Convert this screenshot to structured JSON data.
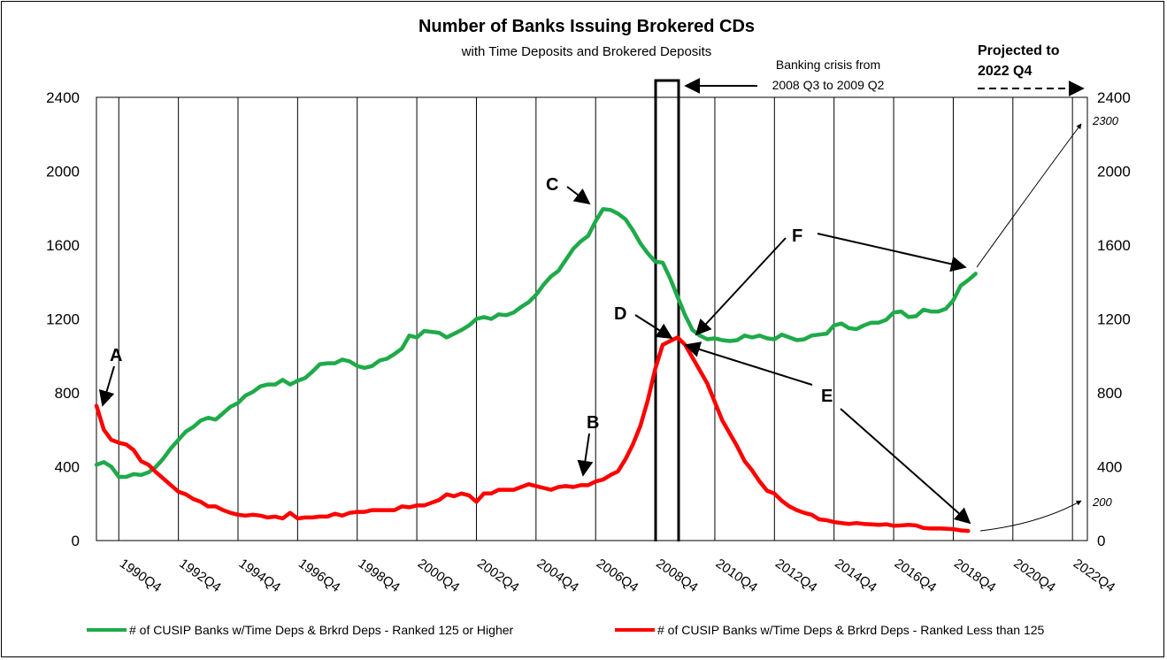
{
  "chart_data": {
    "type": "line",
    "title": "Number of Banks Issuing Brokered CDs",
    "subtitle": "with Time Deposits and Brokered Deposits",
    "x_tick_labels": [
      "1990Q4",
      "1992Q4",
      "1994Q4",
      "1996Q4",
      "1998Q4",
      "2000Q4",
      "2002Q4",
      "2004Q4",
      "2006Q4",
      "2008Q4",
      "2010Q4",
      "2012Q4",
      "2014Q4",
      "2016Q4",
      "2018Q4",
      "2020Q4",
      "2022Q4"
    ],
    "x_range": [
      1990.0,
      2023.25
    ],
    "y_left_ticks": [
      0,
      400,
      800,
      1200,
      1600,
      2000,
      2400
    ],
    "y_right_ticks": [
      0,
      400,
      800,
      1200,
      1600,
      2000,
      2400
    ],
    "ylim": [
      0,
      2400
    ],
    "grid": "vertical lines at each tick year",
    "legend_placement": "bottom",
    "series": [
      {
        "name": "# of CUSIP Banks w/Time Deps & Brkrd Deps - Ranked 125 or Higher",
        "color": "#1faa4a",
        "points": [
          [
            1990.0,
            410
          ],
          [
            1990.25,
            425
          ],
          [
            1990.5,
            400
          ],
          [
            1990.75,
            345
          ],
          [
            1991.0,
            345
          ],
          [
            1991.25,
            360
          ],
          [
            1991.5,
            355
          ],
          [
            1991.75,
            370
          ],
          [
            1992.0,
            400
          ],
          [
            1992.25,
            445
          ],
          [
            1992.5,
            500
          ],
          [
            1992.75,
            545
          ],
          [
            1993.0,
            590
          ],
          [
            1993.25,
            615
          ],
          [
            1993.5,
            650
          ],
          [
            1993.75,
            665
          ],
          [
            1994.0,
            655
          ],
          [
            1994.25,
            690
          ],
          [
            1994.5,
            725
          ],
          [
            1994.75,
            745
          ],
          [
            1995.0,
            785
          ],
          [
            1995.25,
            805
          ],
          [
            1995.5,
            835
          ],
          [
            1995.75,
            845
          ],
          [
            1996.0,
            845
          ],
          [
            1996.25,
            870
          ],
          [
            1996.5,
            845
          ],
          [
            1996.75,
            865
          ],
          [
            1997.0,
            880
          ],
          [
            1997.25,
            915
          ],
          [
            1997.5,
            955
          ],
          [
            1997.75,
            960
          ],
          [
            1998.0,
            960
          ],
          [
            1998.25,
            980
          ],
          [
            1998.5,
            970
          ],
          [
            1998.75,
            945
          ],
          [
            1999.0,
            935
          ],
          [
            1999.25,
            945
          ],
          [
            1999.5,
            975
          ],
          [
            1999.75,
            985
          ],
          [
            2000.0,
            1010
          ],
          [
            2000.25,
            1040
          ],
          [
            2000.5,
            1110
          ],
          [
            2000.75,
            1100
          ],
          [
            2001.0,
            1135
          ],
          [
            2001.25,
            1130
          ],
          [
            2001.5,
            1125
          ],
          [
            2001.75,
            1100
          ],
          [
            2002.0,
            1120
          ],
          [
            2002.25,
            1140
          ],
          [
            2002.5,
            1165
          ],
          [
            2002.75,
            1200
          ],
          [
            2003.0,
            1210
          ],
          [
            2003.25,
            1200
          ],
          [
            2003.5,
            1225
          ],
          [
            2003.75,
            1220
          ],
          [
            2004.0,
            1235
          ],
          [
            2004.25,
            1265
          ],
          [
            2004.5,
            1290
          ],
          [
            2004.75,
            1330
          ],
          [
            2005.0,
            1385
          ],
          [
            2005.25,
            1430
          ],
          [
            2005.5,
            1460
          ],
          [
            2005.75,
            1520
          ],
          [
            2006.0,
            1580
          ],
          [
            2006.25,
            1620
          ],
          [
            2006.5,
            1650
          ],
          [
            2006.75,
            1730
          ],
          [
            2007.0,
            1795
          ],
          [
            2007.25,
            1790
          ],
          [
            2007.5,
            1770
          ],
          [
            2007.75,
            1740
          ],
          [
            2008.0,
            1680
          ],
          [
            2008.25,
            1610
          ],
          [
            2008.5,
            1555
          ],
          [
            2008.75,
            1510
          ],
          [
            2009.0,
            1505
          ],
          [
            2009.25,
            1420
          ],
          [
            2009.5,
            1320
          ],
          [
            2009.75,
            1220
          ],
          [
            2010.0,
            1140
          ],
          [
            2010.25,
            1110
          ],
          [
            2010.5,
            1090
          ],
          [
            2010.75,
            1095
          ],
          [
            2011.0,
            1085
          ],
          [
            2011.25,
            1080
          ],
          [
            2011.5,
            1085
          ],
          [
            2011.75,
            1110
          ],
          [
            2012.0,
            1100
          ],
          [
            2012.25,
            1110
          ],
          [
            2012.5,
            1095
          ],
          [
            2012.75,
            1090
          ],
          [
            2013.0,
            1115
          ],
          [
            2013.25,
            1100
          ],
          [
            2013.5,
            1085
          ],
          [
            2013.75,
            1090
          ],
          [
            2014.0,
            1110
          ],
          [
            2014.25,
            1115
          ],
          [
            2014.5,
            1120
          ],
          [
            2014.75,
            1165
          ],
          [
            2015.0,
            1175
          ],
          [
            2015.25,
            1150
          ],
          [
            2015.5,
            1145
          ],
          [
            2015.75,
            1165
          ],
          [
            2016.0,
            1180
          ],
          [
            2016.25,
            1180
          ],
          [
            2016.5,
            1195
          ],
          [
            2016.75,
            1235
          ],
          [
            2017.0,
            1240
          ],
          [
            2017.25,
            1210
          ],
          [
            2017.5,
            1215
          ],
          [
            2017.75,
            1250
          ],
          [
            2018.0,
            1240
          ],
          [
            2018.25,
            1240
          ],
          [
            2018.5,
            1255
          ],
          [
            2018.75,
            1300
          ],
          [
            2019.0,
            1380
          ],
          [
            2019.25,
            1410
          ],
          [
            2019.5,
            1445
          ]
        ]
      },
      {
        "name": "# of CUSIP Banks w/Time Deps & Brkrd Deps -  Ranked Less than 125",
        "color": "#ff0000",
        "points": [
          [
            1990.0,
            730
          ],
          [
            1990.25,
            600
          ],
          [
            1990.5,
            545
          ],
          [
            1990.75,
            530
          ],
          [
            1991.0,
            520
          ],
          [
            1991.25,
            490
          ],
          [
            1991.5,
            430
          ],
          [
            1991.75,
            410
          ],
          [
            1992.0,
            370
          ],
          [
            1992.25,
            335
          ],
          [
            1992.5,
            300
          ],
          [
            1992.75,
            265
          ],
          [
            1993.0,
            250
          ],
          [
            1993.25,
            225
          ],
          [
            1993.5,
            210
          ],
          [
            1993.75,
            185
          ],
          [
            1994.0,
            185
          ],
          [
            1994.25,
            165
          ],
          [
            1994.5,
            150
          ],
          [
            1994.75,
            140
          ],
          [
            1995.0,
            135
          ],
          [
            1995.25,
            140
          ],
          [
            1995.5,
            135
          ],
          [
            1995.75,
            125
          ],
          [
            1996.0,
            130
          ],
          [
            1996.25,
            120
          ],
          [
            1996.5,
            150
          ],
          [
            1996.75,
            120
          ],
          [
            1997.0,
            125
          ],
          [
            1997.25,
            125
          ],
          [
            1997.5,
            130
          ],
          [
            1997.75,
            130
          ],
          [
            1998.0,
            145
          ],
          [
            1998.25,
            135
          ],
          [
            1998.5,
            150
          ],
          [
            1998.75,
            155
          ],
          [
            1999.0,
            155
          ],
          [
            1999.25,
            165
          ],
          [
            1999.5,
            165
          ],
          [
            1999.75,
            165
          ],
          [
            2000.0,
            165
          ],
          [
            2000.25,
            185
          ],
          [
            2000.5,
            180
          ],
          [
            2000.75,
            190
          ],
          [
            2001.0,
            190
          ],
          [
            2001.25,
            205
          ],
          [
            2001.5,
            220
          ],
          [
            2001.75,
            250
          ],
          [
            2002.0,
            240
          ],
          [
            2002.25,
            255
          ],
          [
            2002.5,
            245
          ],
          [
            2002.75,
            210
          ],
          [
            2003.0,
            255
          ],
          [
            2003.25,
            255
          ],
          [
            2003.5,
            275
          ],
          [
            2003.75,
            275
          ],
          [
            2004.0,
            275
          ],
          [
            2004.25,
            290
          ],
          [
            2004.5,
            305
          ],
          [
            2004.75,
            295
          ],
          [
            2005.0,
            285
          ],
          [
            2005.25,
            275
          ],
          [
            2005.5,
            290
          ],
          [
            2005.75,
            295
          ],
          [
            2006.0,
            290
          ],
          [
            2006.25,
            300
          ],
          [
            2006.5,
            300
          ],
          [
            2006.75,
            320
          ],
          [
            2007.0,
            330
          ],
          [
            2007.25,
            355
          ],
          [
            2007.5,
            375
          ],
          [
            2007.75,
            440
          ],
          [
            2008.0,
            520
          ],
          [
            2008.25,
            620
          ],
          [
            2008.5,
            760
          ],
          [
            2008.75,
            930
          ],
          [
            2009.0,
            1060
          ],
          [
            2009.25,
            1080
          ],
          [
            2009.5,
            1100
          ],
          [
            2009.75,
            1060
          ],
          [
            2010.0,
            990
          ],
          [
            2010.25,
            920
          ],
          [
            2010.5,
            850
          ],
          [
            2010.75,
            750
          ],
          [
            2011.0,
            650
          ],
          [
            2011.25,
            580
          ],
          [
            2011.5,
            510
          ],
          [
            2011.75,
            430
          ],
          [
            2012.0,
            380
          ],
          [
            2012.25,
            320
          ],
          [
            2012.5,
            270
          ],
          [
            2012.75,
            255
          ],
          [
            2013.0,
            215
          ],
          [
            2013.25,
            185
          ],
          [
            2013.5,
            165
          ],
          [
            2013.75,
            150
          ],
          [
            2014.0,
            140
          ],
          [
            2014.25,
            115
          ],
          [
            2014.5,
            110
          ],
          [
            2014.75,
            100
          ],
          [
            2015.0,
            95
          ],
          [
            2015.25,
            90
          ],
          [
            2015.5,
            95
          ],
          [
            2015.75,
            90
          ],
          [
            2016.0,
            88
          ],
          [
            2016.25,
            85
          ],
          [
            2016.5,
            88
          ],
          [
            2016.75,
            80
          ],
          [
            2017.0,
            82
          ],
          [
            2017.25,
            85
          ],
          [
            2017.5,
            82
          ],
          [
            2017.75,
            68
          ],
          [
            2018.0,
            65
          ],
          [
            2018.25,
            66
          ],
          [
            2018.5,
            64
          ],
          [
            2018.75,
            62
          ],
          [
            2019.0,
            55
          ],
          [
            2019.25,
            52
          ]
        ]
      }
    ],
    "annotations": {
      "A": "A",
      "B": "B",
      "C": "C",
      "D": "D",
      "E": "E",
      "F": "F",
      "crisis_note_line1": "Banking crisis from",
      "crisis_note_line2": "2008 Q3 to 2009 Q2",
      "projected_line1": "Projected to",
      "projected_line2": "2022 Q4",
      "projection_high": "2300",
      "projection_low": "200"
    }
  }
}
